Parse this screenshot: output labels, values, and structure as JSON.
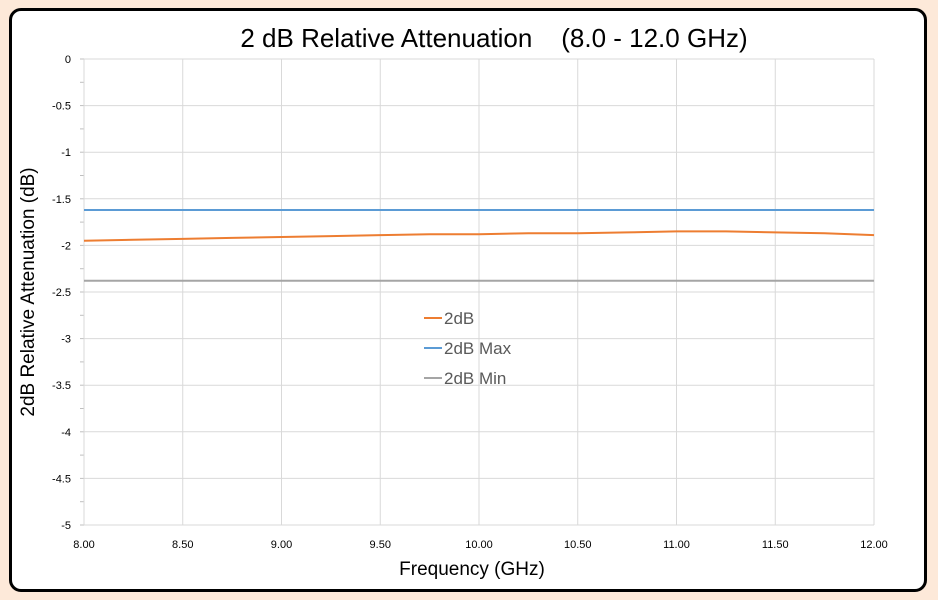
{
  "chart_data": {
    "type": "line",
    "title": "2 dB Relative Attenuation    (8.0 - 12.0 GHz)",
    "xlabel": "Frequency (GHz)",
    "ylabel": "2dB Relative Attenuation (dB)",
    "xlim": [
      8.0,
      12.0
    ],
    "ylim": [
      -5,
      0
    ],
    "x_ticks": [
      "8.00",
      "8.50",
      "9.00",
      "9.50",
      "10.00",
      "10.50",
      "11.00",
      "11.50",
      "12.00"
    ],
    "y_ticks": [
      "0",
      "-0.5",
      "-1",
      "-1.5",
      "-2",
      "-2.5",
      "-3",
      "-3.5",
      "-4",
      "-4.5",
      "-5"
    ],
    "grid": true,
    "legend_position": "center",
    "series": [
      {
        "name": "2dB",
        "color": "#ed7d31",
        "x": [
          8.0,
          8.25,
          8.5,
          8.75,
          9.0,
          9.25,
          9.5,
          9.75,
          10.0,
          10.25,
          10.5,
          10.75,
          11.0,
          11.25,
          11.5,
          11.75,
          12.0
        ],
        "values": [
          -1.95,
          -1.94,
          -1.93,
          -1.92,
          -1.91,
          -1.9,
          -1.89,
          -1.88,
          -1.88,
          -1.87,
          -1.87,
          -1.86,
          -1.85,
          -1.85,
          -1.86,
          -1.87,
          -1.89
        ]
      },
      {
        "name": "2dB Max",
        "color": "#5b9bd5",
        "x": [
          8.0,
          12.0
        ],
        "values": [
          -1.62,
          -1.62
        ]
      },
      {
        "name": "2dB Min",
        "color": "#a5a5a5",
        "x": [
          8.0,
          12.0
        ],
        "values": [
          -2.38,
          -2.38
        ]
      }
    ]
  }
}
